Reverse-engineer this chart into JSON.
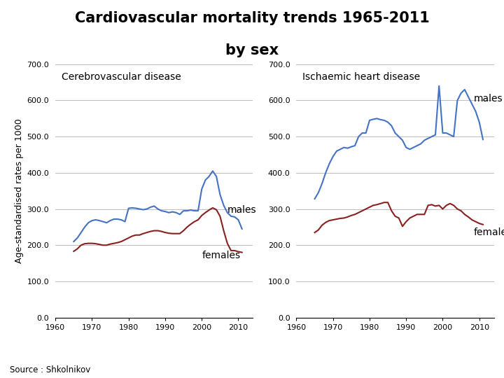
{
  "title_line1": "Cardiovascular mortality trends 1965-2011",
  "title_line2": "by sex",
  "ylabel": "Age-standardised rates per 1000",
  "source": "Source : Shkolnikov",
  "subplot1_title": "Cerebrovascular disease",
  "subplot2_title": "Ischaemic heart disease",
  "xlim": [
    1960,
    2014
  ],
  "ylim": [
    0,
    700
  ],
  "yticks": [
    0.0,
    100.0,
    200.0,
    300.0,
    400.0,
    500.0,
    600.0,
    700.0
  ],
  "xticks": [
    1960,
    1970,
    1980,
    1990,
    2000,
    2010
  ],
  "male_color": "#4472C4",
  "female_color": "#8B2020",
  "title_fontsize": 15,
  "label_fontsize": 10,
  "tick_fontsize": 8,
  "annotation_fontsize": 10,
  "cerebro_male_x": [
    1965,
    1966,
    1967,
    1968,
    1969,
    1970,
    1971,
    1972,
    1973,
    1974,
    1975,
    1976,
    1977,
    1978,
    1979,
    1980,
    1981,
    1982,
    1983,
    1984,
    1985,
    1986,
    1987,
    1988,
    1989,
    1990,
    1991,
    1992,
    1993,
    1994,
    1995,
    1996,
    1997,
    1998,
    1999,
    2000,
    2001,
    2002,
    2003,
    2004,
    2005,
    2006,
    2007,
    2008,
    2009,
    2010,
    2011
  ],
  "cerebro_male_y": [
    210,
    220,
    235,
    250,
    262,
    268,
    270,
    268,
    265,
    262,
    268,
    272,
    272,
    270,
    265,
    302,
    303,
    302,
    300,
    298,
    300,
    305,
    308,
    300,
    295,
    293,
    290,
    292,
    290,
    285,
    295,
    295,
    297,
    295,
    295,
    355,
    380,
    390,
    405,
    390,
    340,
    310,
    290,
    280,
    278,
    270,
    245
  ],
  "cerebro_female_x": [
    1965,
    1966,
    1967,
    1968,
    1969,
    1970,
    1971,
    1972,
    1973,
    1974,
    1975,
    1976,
    1977,
    1978,
    1979,
    1980,
    1981,
    1982,
    1983,
    1984,
    1985,
    1986,
    1987,
    1988,
    1989,
    1990,
    1991,
    1992,
    1993,
    1994,
    1995,
    1996,
    1997,
    1998,
    1999,
    2000,
    2001,
    2002,
    2003,
    2004,
    2005,
    2006,
    2007,
    2008,
    2009,
    2010,
    2011
  ],
  "cerebro_female_y": [
    183,
    190,
    200,
    204,
    205,
    205,
    204,
    202,
    200,
    200,
    203,
    205,
    207,
    210,
    215,
    220,
    225,
    228,
    228,
    232,
    235,
    238,
    240,
    240,
    238,
    235,
    233,
    232,
    232,
    232,
    240,
    250,
    258,
    265,
    270,
    282,
    290,
    297,
    303,
    298,
    280,
    240,
    205,
    185,
    185,
    182,
    180
  ],
  "ischaemic_male_x": [
    1965,
    1966,
    1967,
    1968,
    1969,
    1970,
    1971,
    1972,
    1973,
    1974,
    1975,
    1976,
    1977,
    1978,
    1979,
    1980,
    1981,
    1982,
    1983,
    1984,
    1985,
    1986,
    1987,
    1988,
    1989,
    1990,
    1991,
    1992,
    1993,
    1994,
    1995,
    1996,
    1997,
    1998,
    1999,
    2000,
    2001,
    2002,
    2003,
    2004,
    2005,
    2006,
    2007,
    2008,
    2009,
    2010,
    2011
  ],
  "ischaemic_male_y": [
    328,
    345,
    370,
    400,
    425,
    445,
    460,
    465,
    470,
    468,
    472,
    475,
    500,
    510,
    510,
    545,
    548,
    550,
    547,
    545,
    540,
    530,
    510,
    500,
    490,
    470,
    465,
    470,
    475,
    480,
    490,
    495,
    500,
    505,
    640,
    510,
    510,
    505,
    500,
    600,
    620,
    630,
    610,
    590,
    570,
    540,
    492
  ],
  "ischaemic_female_x": [
    1965,
    1966,
    1967,
    1968,
    1969,
    1970,
    1971,
    1972,
    1973,
    1974,
    1975,
    1976,
    1977,
    1978,
    1979,
    1980,
    1981,
    1982,
    1983,
    1984,
    1985,
    1986,
    1987,
    1988,
    1989,
    1990,
    1991,
    1992,
    1993,
    1994,
    1995,
    1996,
    1997,
    1998,
    1999,
    2000,
    2001,
    2002,
    2003,
    2004,
    2005,
    2006,
    2007,
    2008,
    2009,
    2010,
    2011
  ],
  "ischaemic_female_y": [
    235,
    242,
    255,
    263,
    268,
    270,
    272,
    274,
    275,
    278,
    282,
    285,
    290,
    295,
    300,
    305,
    310,
    312,
    315,
    318,
    318,
    295,
    280,
    275,
    252,
    265,
    275,
    280,
    285,
    285,
    285,
    310,
    312,
    308,
    310,
    300,
    310,
    315,
    310,
    300,
    295,
    285,
    278,
    270,
    265,
    260,
    257
  ]
}
